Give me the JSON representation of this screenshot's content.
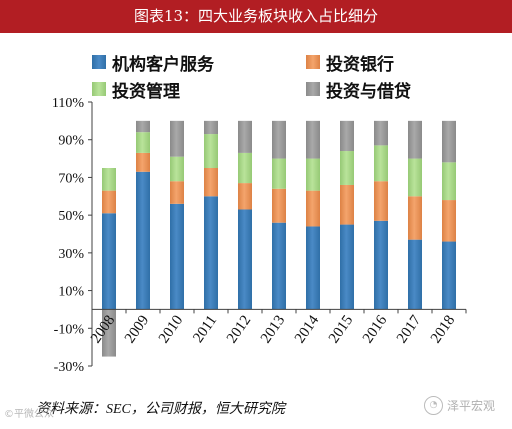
{
  "title": "图表13：四大业务板块收入占比细分",
  "source": "资料来源：SEC，公司财报，恒大研究院",
  "watermarks": {
    "left": "©平微公众",
    "right": "泽平宏观",
    "right_icon": "wechat-icon"
  },
  "colors": {
    "title_bg": "#b21e23",
    "series": [
      "#4a8ac6",
      "#f4a46c",
      "#b9e39a",
      "#a9a9a9"
    ],
    "series_dark": [
      "#2f6fa7",
      "#dd8245",
      "#96c975",
      "#8a8a8a"
    ]
  },
  "chart_data": {
    "type": "bar",
    "stacked": true,
    "categories": [
      "2008",
      "2009",
      "2010",
      "2011",
      "2012",
      "2013",
      "2014",
      "2015",
      "2016",
      "2017",
      "2018"
    ],
    "series": [
      {
        "name": "机构客户服务",
        "values": [
          51,
          73,
          56,
          60,
          53,
          46,
          44,
          45,
          47,
          37,
          36
        ]
      },
      {
        "name": "投资银行",
        "values": [
          12,
          10,
          12,
          15,
          14,
          18,
          19,
          21,
          21,
          23,
          22
        ]
      },
      {
        "name": "投资管理",
        "values": [
          12,
          11,
          13,
          18,
          16,
          16,
          17,
          18,
          19,
          20,
          20
        ]
      },
      {
        "name": "投资与借贷",
        "values": [
          -25,
          6,
          19,
          7,
          17,
          20,
          20,
          16,
          13,
          20,
          22
        ]
      }
    ],
    "yticks": [
      "110%",
      "90%",
      "70%",
      "50%",
      "30%",
      "10%",
      "-10%",
      "-30%"
    ],
    "ylim": [
      -30,
      110
    ],
    "legend_position": "top",
    "grid": false
  }
}
